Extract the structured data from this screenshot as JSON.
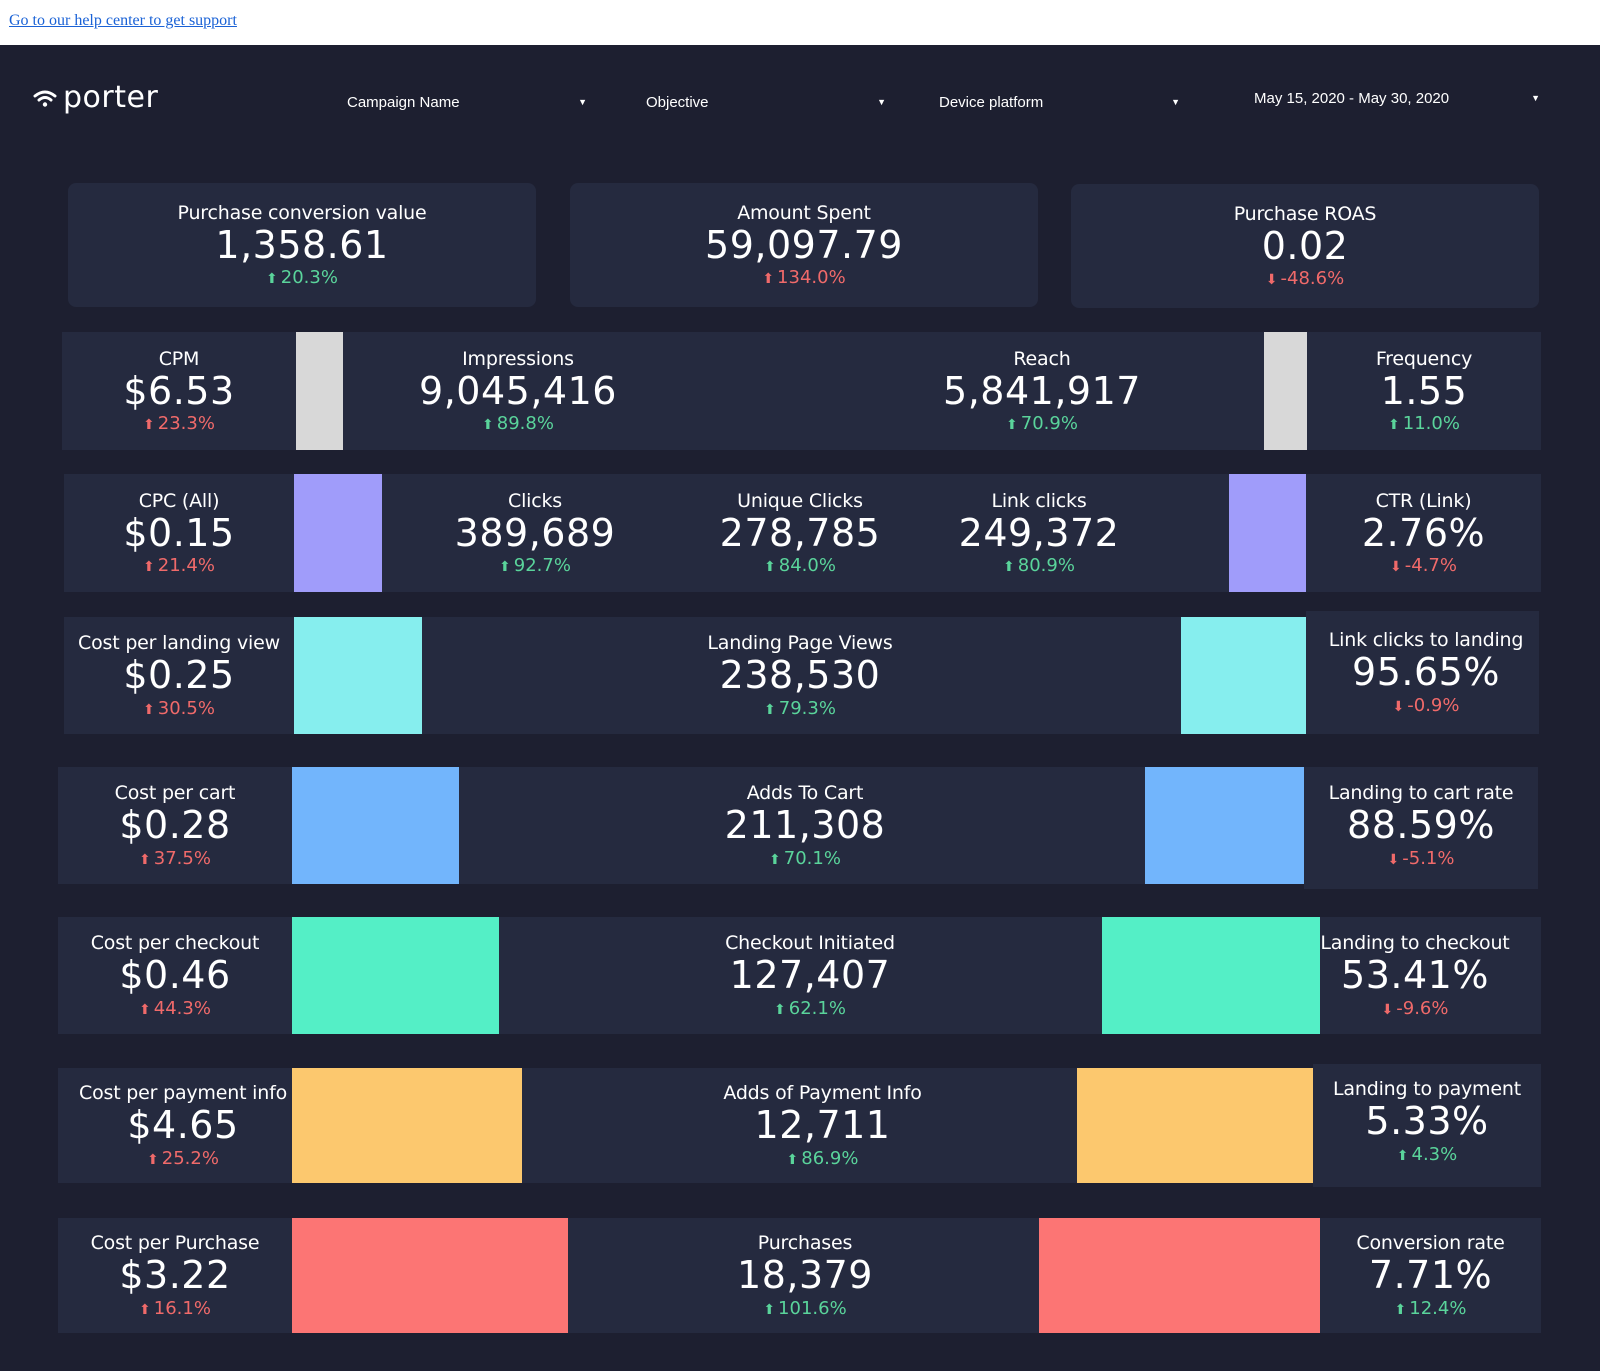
{
  "help_link": "Go to our help center to get support",
  "logo": {
    "text": "porter",
    "icon": "wifi-icon"
  },
  "filters": [
    {
      "label": "Campaign Name",
      "icon": "caret-down-icon"
    },
    {
      "label": "Objective",
      "icon": "caret-down-icon"
    },
    {
      "label": "Device platform",
      "icon": "caret-down-icon"
    },
    {
      "label": "May 15, 2020 - May 30, 2020",
      "icon": "caret-down-icon"
    }
  ],
  "colors": {
    "background": "#1d1f30",
    "card": "#252a3f",
    "positive": "#5ad49b",
    "negative": "#f06a6a",
    "gray": "#d8d8d8",
    "purple": "#a09cfa",
    "cyan": "#86eeee",
    "blue": "#72b5fc",
    "teal": "#54efc6",
    "yellow": "#fcc86e",
    "coral": "#fc7574"
  },
  "top": [
    {
      "title": "Purchase conversion value",
      "value": "1,358.61",
      "delta": "20.3%",
      "dir": "up",
      "tone": "good"
    },
    {
      "title": "Amount Spent",
      "value": "59,097.79",
      "delta": "134.0%",
      "dir": "up",
      "tone": "bad"
    },
    {
      "title": "Purchase ROAS",
      "value": "0.02",
      "delta": "-48.6%",
      "dir": "down",
      "tone": "bad"
    }
  ],
  "rows": {
    "cpm": {
      "title": "CPM",
      "value": "$6.53",
      "delta": "23.3%",
      "dir": "up",
      "tone": "bad"
    },
    "impressions": {
      "title": "Impressions",
      "value": "9,045,416",
      "delta": "89.8%",
      "dir": "up",
      "tone": "good"
    },
    "reach": {
      "title": "Reach",
      "value": "5,841,917",
      "delta": "70.9%",
      "dir": "up",
      "tone": "good"
    },
    "frequency": {
      "title": "Frequency",
      "value": "1.55",
      "delta": "11.0%",
      "dir": "up",
      "tone": "good"
    },
    "cpc": {
      "title": "CPC (All)",
      "value": "$0.15",
      "delta": "21.4%",
      "dir": "up",
      "tone": "bad"
    },
    "clicks": {
      "title": "Clicks",
      "value": "389,689",
      "delta": "92.7%",
      "dir": "up",
      "tone": "good"
    },
    "unique_clicks": {
      "title": "Unique Clicks",
      "value": "278,785",
      "delta": "84.0%",
      "dir": "up",
      "tone": "good"
    },
    "link_clicks": {
      "title": "Link clicks",
      "value": "249,372",
      "delta": "80.9%",
      "dir": "up",
      "tone": "good"
    },
    "ctr": {
      "title": "CTR (Link)",
      "value": "2.76%",
      "delta": "-4.7%",
      "dir": "down",
      "tone": "bad"
    },
    "cost_landing": {
      "title": "Cost per landing view",
      "value": "$0.25",
      "delta": "30.5%",
      "dir": "up",
      "tone": "bad"
    },
    "landing_views": {
      "title": "Landing Page Views",
      "value": "238,530",
      "delta": "79.3%",
      "dir": "up",
      "tone": "good"
    },
    "link_to_landing": {
      "title": "Link clicks to landing",
      "value": "95.65%",
      "delta": "-0.9%",
      "dir": "down",
      "tone": "bad"
    },
    "cost_cart": {
      "title": "Cost per cart",
      "value": "$0.28",
      "delta": "37.5%",
      "dir": "up",
      "tone": "bad"
    },
    "adds_cart": {
      "title": "Adds To Cart",
      "value": "211,308",
      "delta": "70.1%",
      "dir": "up",
      "tone": "good"
    },
    "landing_cart": {
      "title": "Landing to cart rate",
      "value": "88.59%",
      "delta": "-5.1%",
      "dir": "down",
      "tone": "bad"
    },
    "cost_checkout": {
      "title": "Cost per checkout",
      "value": "$0.46",
      "delta": "44.3%",
      "dir": "up",
      "tone": "bad"
    },
    "checkout": {
      "title": "Checkout Initiated",
      "value": "127,407",
      "delta": "62.1%",
      "dir": "up",
      "tone": "good"
    },
    "landing_checkout": {
      "title": "Landing to checkout",
      "value": "53.41%",
      "delta": "-9.6%",
      "dir": "down",
      "tone": "bad"
    },
    "cost_payment": {
      "title": "Cost per payment info",
      "value": "$4.65",
      "delta": "25.2%",
      "dir": "up",
      "tone": "bad"
    },
    "payment": {
      "title": "Adds of Payment Info",
      "value": "12,711",
      "delta": "86.9%",
      "dir": "up",
      "tone": "good"
    },
    "landing_payment": {
      "title": "Landing to payment",
      "value": "5.33%",
      "delta": "4.3%",
      "dir": "up",
      "tone": "good"
    },
    "cost_purchase": {
      "title": "Cost per Purchase",
      "value": "$3.22",
      "delta": "16.1%",
      "dir": "up",
      "tone": "bad"
    },
    "purchases": {
      "title": "Purchases",
      "value": "18,379",
      "delta": "101.6%",
      "dir": "up",
      "tone": "good"
    },
    "conversion": {
      "title": "Conversion rate",
      "value": "7.71%",
      "delta": "12.4%",
      "dir": "up",
      "tone": "good"
    }
  }
}
